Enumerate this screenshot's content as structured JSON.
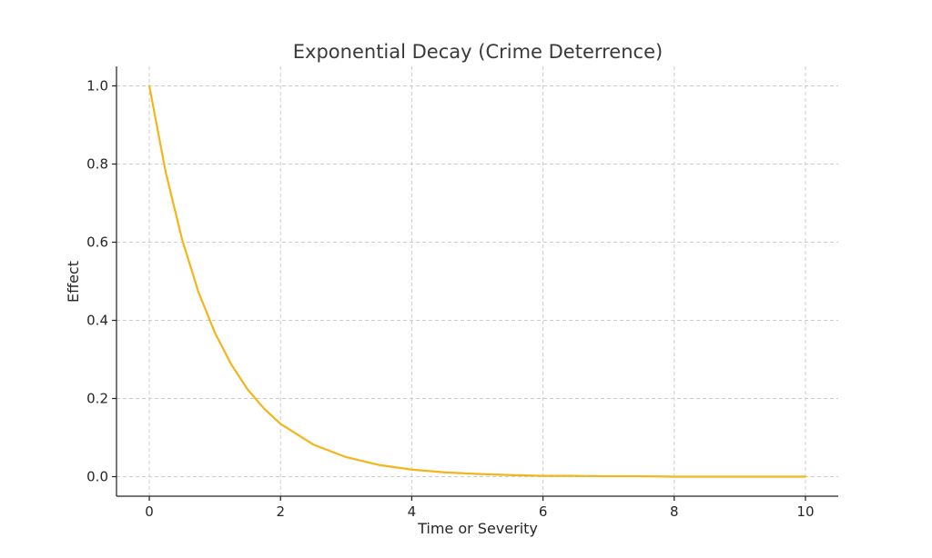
{
  "chart_data": {
    "type": "line",
    "title": "Exponential Decay (Crime Deterrence)",
    "xlabel": "Time or Severity",
    "ylabel": "Effect",
    "xlim": [
      -0.5,
      10.5
    ],
    "ylim": [
      -0.05,
      1.05
    ],
    "x_ticks": [
      0,
      2,
      4,
      6,
      8,
      10
    ],
    "y_ticks": [
      0.0,
      0.2,
      0.4,
      0.6,
      0.8,
      1.0
    ],
    "x_tick_labels": [
      "0",
      "2",
      "4",
      "6",
      "8",
      "10"
    ],
    "y_tick_labels": [
      "0.0",
      "0.2",
      "0.4",
      "0.6",
      "0.8",
      "1.0"
    ],
    "grid": true,
    "series": [
      {
        "color": "#f4b41a",
        "x": [
          0,
          0.25,
          0.5,
          0.75,
          1,
          1.25,
          1.5,
          1.75,
          2,
          2.5,
          3,
          3.5,
          4,
          4.5,
          5,
          5.5,
          6,
          6.5,
          7,
          7.5,
          8,
          8.5,
          9,
          9.5,
          10
        ],
        "y": [
          1.0,
          0.779,
          0.607,
          0.472,
          0.368,
          0.287,
          0.223,
          0.174,
          0.135,
          0.082,
          0.05,
          0.03,
          0.018,
          0.011,
          0.007,
          0.004,
          0.002,
          0.002,
          0.001,
          0.001,
          0.0,
          0.0,
          0.0,
          0.0,
          0.0
        ]
      }
    ]
  }
}
